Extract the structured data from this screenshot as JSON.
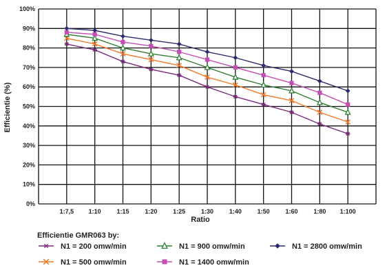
{
  "chart_data": {
    "type": "line",
    "xlabel": "Ratio",
    "ylabel": "Efficientie (%)",
    "ylim": [
      0,
      100
    ],
    "y_ticks": [
      "0%",
      "10%",
      "20%",
      "30%",
      "40%",
      "50%",
      "60%",
      "70%",
      "80%",
      "90%",
      "100%"
    ],
    "categories": [
      "1:7,5",
      "1:10",
      "1:15",
      "1:20",
      "1:25",
      "1:30",
      "1:40",
      "1:50",
      "1:60",
      "1:80",
      "1:100"
    ],
    "grid": true,
    "legend_title": "Efficientie GMR063 by:",
    "legend_position": "bottom",
    "series": [
      {
        "name": "N1 = 200 omw/min",
        "color": "#7b2b7e",
        "marker": "star",
        "values": [
          82,
          79,
          73,
          69,
          66,
          60,
          55,
          51,
          47,
          41,
          36
        ]
      },
      {
        "name": "N1 = 500 omw/min",
        "color": "#f07a2a",
        "marker": "x",
        "values": [
          85,
          82,
          77,
          74,
          71,
          65,
          61,
          56,
          53,
          47,
          42
        ]
      },
      {
        "name": "N1 = 900 omw/min",
        "color": "#2e7d32",
        "marker": "triangle",
        "values": [
          87,
          85,
          80,
          77,
          75,
          70,
          65,
          61,
          58,
          52,
          47
        ]
      },
      {
        "name": "N1 = 1400 omw/min",
        "color": "#c34fb4",
        "marker": "square",
        "values": [
          88,
          87,
          83,
          81,
          78,
          74,
          70,
          66,
          62,
          57,
          51
        ]
      },
      {
        "name": "N1 = 2800 omw/min",
        "color": "#2b2b6b",
        "marker": "diamond",
        "values": [
          90,
          89,
          86,
          84,
          82,
          78,
          75,
          71,
          68,
          63,
          58
        ]
      }
    ]
  }
}
